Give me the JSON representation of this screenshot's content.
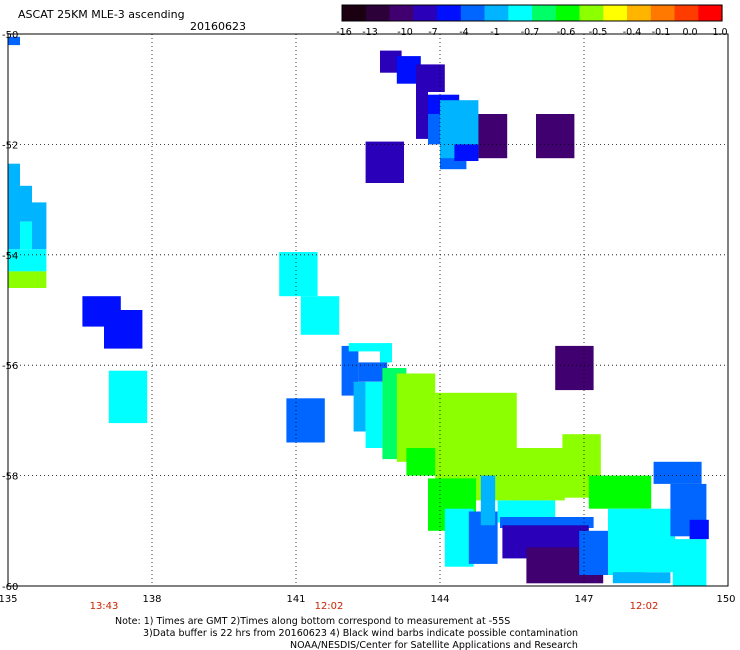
{
  "header": {
    "title": "ASCAT 25KM MLE-3 ascending",
    "date": "20160623"
  },
  "colorbar": {
    "labels": [
      "-16",
      "-13",
      "-10",
      "-7",
      "-4",
      "-1",
      "-0.7",
      "-0.6",
      "-0.5",
      "-0.4",
      "-0.1",
      "0.0",
      "1.0"
    ],
    "colors": [
      "#1a0010",
      "#2c0038",
      "#400070",
      "#2a00b8",
      "#0010ff",
      "#0066ff",
      "#00b4ff",
      "#00ffff",
      "#00ff66",
      "#00ff00",
      "#8cff00",
      "#ffff00",
      "#ffb400",
      "#ff7800",
      "#ff3c00",
      "#ff0000"
    ]
  },
  "time_labels": [
    "13:43",
    "12:02",
    "12:02"
  ],
  "notes": [
    "Note: 1) Times are GMT 2)Times along bottom correspond to measurement at -55S",
    "3)Data buffer is 22 hrs from 20160623 4) Black wind barbs indicate possible contamination",
    "NOAA/NESDIS/Center for Satellite Applications and Research"
  ],
  "chart_data": {
    "type": "heatmap",
    "title": "ASCAT 25KM MLE-3 ascending",
    "subtitle": "20160623",
    "xlabel": "",
    "ylabel": "",
    "xlim": [
      135,
      150
    ],
    "ylim": [
      -60,
      -50
    ],
    "x_ticks": [
      135,
      138,
      141,
      144,
      147,
      150
    ],
    "y_ticks": [
      -50,
      -52,
      -54,
      -56,
      -58,
      -60
    ],
    "x_tick_labels": [
      "135",
      "138",
      "141",
      "144",
      "147",
      "150"
    ],
    "y_tick_labels": [
      "-50",
      "-52",
      "-54",
      "-56",
      "-58",
      "-60"
    ],
    "grid": true,
    "cells": [
      {
        "x0": 135.0,
        "x1": 135.25,
        "y0": -50.2,
        "y1": -50.05,
        "v": -7
      },
      {
        "x0": 135.0,
        "x1": 135.25,
        "y0": -52.6,
        "y1": -52.35,
        "v": -4
      },
      {
        "x0": 135.0,
        "x1": 135.25,
        "y0": -53.9,
        "y1": -52.6,
        "v": -4
      },
      {
        "x0": 135.25,
        "x1": 135.5,
        "y0": -53.4,
        "y1": -52.75,
        "v": -4
      },
      {
        "x0": 135.25,
        "x1": 135.5,
        "y0": -53.9,
        "y1": -53.4,
        "v": -1
      },
      {
        "x0": 135.5,
        "x1": 135.8,
        "y0": -53.9,
        "y1": -53.05,
        "v": -4
      },
      {
        "x0": 135.0,
        "x1": 135.8,
        "y0": -54.3,
        "y1": -53.9,
        "v": -1
      },
      {
        "x0": 135.0,
        "x1": 135.8,
        "y0": -54.6,
        "y1": -54.3,
        "v": -0.5
      },
      {
        "x0": 136.55,
        "x1": 137.35,
        "y0": -55.3,
        "y1": -54.75,
        "v": -10
      },
      {
        "x0": 137.0,
        "x1": 137.8,
        "y0": -55.7,
        "y1": -55.0,
        "v": -10
      },
      {
        "x0": 137.1,
        "x1": 137.9,
        "y0": -57.05,
        "y1": -56.1,
        "v": -1
      },
      {
        "x0": 140.65,
        "x1": 141.45,
        "y0": -54.75,
        "y1": -53.95,
        "v": -1
      },
      {
        "x0": 141.1,
        "x1": 141.9,
        "y0": -55.45,
        "y1": -54.75,
        "v": -1
      },
      {
        "x0": 140.8,
        "x1": 141.6,
        "y0": -57.4,
        "y1": -56.6,
        "v": -7
      },
      {
        "x0": 141.95,
        "x1": 142.3,
        "y0": -56.55,
        "y1": -55.65,
        "v": -7
      },
      {
        "x0": 142.1,
        "x1": 142.75,
        "y0": -55.75,
        "y1": -55.6,
        "v": -1
      },
      {
        "x0": 142.75,
        "x1": 143.0,
        "y0": -55.95,
        "y1": -55.6,
        "v": -1
      },
      {
        "x0": 142.2,
        "x1": 142.45,
        "y0": -57.2,
        "y1": -56.3,
        "v": -4
      },
      {
        "x0": 142.3,
        "x1": 142.9,
        "y0": -56.3,
        "y1": -55.95,
        "v": -7
      },
      {
        "x0": 142.45,
        "x1": 142.8,
        "y0": -57.5,
        "y1": -56.3,
        "v": -1
      },
      {
        "x0": 142.8,
        "x1": 143.3,
        "y0": -57.7,
        "y1": -56.05,
        "v": -0.7
      },
      {
        "x0": 143.1,
        "x1": 143.9,
        "y0": -57.75,
        "y1": -56.15,
        "v": -0.5
      },
      {
        "x0": 143.3,
        "x1": 144.1,
        "y0": -58.0,
        "y1": -57.5,
        "v": -0.6
      },
      {
        "x0": 143.9,
        "x1": 145.6,
        "y0": -58.45,
        "y1": -56.5,
        "v": -0.5
      },
      {
        "x0": 145.5,
        "x1": 146.6,
        "y0": -58.45,
        "y1": -57.5,
        "v": -0.5
      },
      {
        "x0": 146.55,
        "x1": 147.35,
        "y0": -58.4,
        "y1": -57.25,
        "v": -0.5
      },
      {
        "x0": 147.1,
        "x1": 148.4,
        "y0": -58.6,
        "y1": -58.0,
        "v": -0.6
      },
      {
        "x0": 143.75,
        "x1": 144.75,
        "y0": -59.0,
        "y1": -58.05,
        "v": -0.6
      },
      {
        "x0": 144.1,
        "x1": 144.7,
        "y0": -59.65,
        "y1": -58.6,
        "v": -1
      },
      {
        "x0": 144.6,
        "x1": 145.2,
        "y0": -59.6,
        "y1": -58.65,
        "v": -7
      },
      {
        "x0": 144.85,
        "x1": 145.15,
        "y0": -58.9,
        "y1": -58.0,
        "v": -4
      },
      {
        "x0": 145.2,
        "x1": 146.4,
        "y0": -58.85,
        "y1": -58.45,
        "v": -1
      },
      {
        "x0": 145.25,
        "x1": 147.2,
        "y0": -58.95,
        "y1": -58.75,
        "v": -7
      },
      {
        "x0": 145.3,
        "x1": 147.1,
        "y0": -59.5,
        "y1": -58.9,
        "v": -13
      },
      {
        "x0": 145.8,
        "x1": 147.4,
        "y0": -59.95,
        "y1": -59.3,
        "v": -16
      },
      {
        "x0": 146.9,
        "x1": 147.9,
        "y0": -59.8,
        "y1": -59.0,
        "v": -7
      },
      {
        "x0": 147.5,
        "x1": 148.3,
        "y0": -59.8,
        "y1": -58.6,
        "v": -1
      },
      {
        "x0": 147.6,
        "x1": 148.8,
        "y0": -59.95,
        "y1": -59.75,
        "v": -4
      },
      {
        "x0": 148.2,
        "x1": 148.9,
        "y0": -59.75,
        "y1": -58.6,
        "v": -1
      },
      {
        "x0": 148.85,
        "x1": 149.55,
        "y0": -60.0,
        "y1": -59.15,
        "v": -1
      },
      {
        "x0": 148.45,
        "x1": 149.45,
        "y0": -58.15,
        "y1": -57.75,
        "v": -7
      },
      {
        "x0": 148.8,
        "x1": 149.55,
        "y0": -59.1,
        "y1": -58.15,
        "v": -7
      },
      {
        "x0": 149.2,
        "x1": 149.6,
        "y0": -59.15,
        "y1": -58.8,
        "v": -10
      },
      {
        "x0": 146.4,
        "x1": 147.2,
        "y0": -56.45,
        "y1": -55.65,
        "v": -16
      },
      {
        "x0": 144.6,
        "x1": 145.4,
        "y0": -52.25,
        "y1": -51.45,
        "v": -16
      },
      {
        "x0": 146.0,
        "x1": 146.8,
        "y0": -52.25,
        "y1": -51.45,
        "v": -16
      },
      {
        "x0": 142.45,
        "x1": 143.25,
        "y0": -52.7,
        "y1": -51.95,
        "v": -13
      },
      {
        "x0": 142.75,
        "x1": 143.2,
        "y0": -50.7,
        "y1": -50.3,
        "v": -13
      },
      {
        "x0": 143.1,
        "x1": 143.6,
        "y0": -50.9,
        "y1": -50.4,
        "v": -10
      },
      {
        "x0": 143.5,
        "x1": 144.1,
        "y0": -51.05,
        "y1": -50.55,
        "v": -13
      },
      {
        "x0": 143.5,
        "x1": 143.75,
        "y0": -51.9,
        "y1": -51.0,
        "v": -13
      },
      {
        "x0": 143.75,
        "x1": 144.4,
        "y0": -51.45,
        "y1": -51.1,
        "v": -10
      },
      {
        "x0": 143.75,
        "x1": 144.3,
        "y0": -52.0,
        "y1": -51.45,
        "v": -7
      },
      {
        "x0": 144.0,
        "x1": 144.8,
        "y0": -52.3,
        "y1": -51.2,
        "v": -4
      },
      {
        "x0": 144.0,
        "x1": 144.55,
        "y0": -52.45,
        "y1": -52.25,
        "v": -7
      },
      {
        "x0": 144.3,
        "x1": 144.8,
        "y0": -52.3,
        "y1": -52.0,
        "v": -10
      }
    ]
  }
}
